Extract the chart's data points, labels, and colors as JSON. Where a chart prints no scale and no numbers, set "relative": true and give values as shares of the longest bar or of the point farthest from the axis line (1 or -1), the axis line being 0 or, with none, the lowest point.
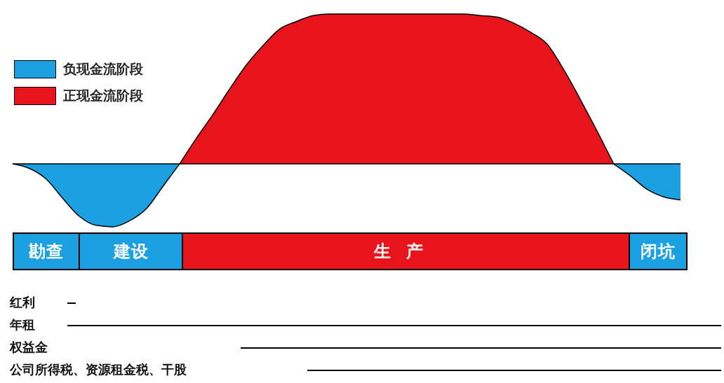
{
  "chart_data": {
    "type": "area",
    "relative": true,
    "legend": "top left",
    "categories": [
      null,
      null,
      null,
      null,
      null,
      null,
      null,
      null,
      null,
      null,
      null,
      null,
      null,
      null,
      null,
      null,
      null,
      null,
      null,
      null,
      null,
      null,
      null,
      null,
      null,
      null,
      null,
      null,
      null,
      null,
      null,
      null,
      null,
      null,
      null,
      null,
      null,
      null,
      null,
      null,
      null
    ],
    "series": [
      {
        "name": "负现金流阶段",
        "color": "#1ba1e2",
        "values": [
          0,
          -0.03,
          -0.1,
          -0.23,
          -0.35,
          -0.41,
          -0.42,
          -0.38,
          -0.3,
          -0.15,
          0,
          null,
          null,
          null,
          null,
          null,
          null,
          null,
          null,
          null,
          null,
          null,
          null,
          null,
          null,
          null,
          null,
          null,
          null,
          null,
          null,
          null,
          null,
          null,
          null,
          null,
          0,
          -0.08,
          -0.17,
          -0.22,
          -0.24
        ]
      },
      {
        "name": "正现金流阶段",
        "color": "#e8141b",
        "values": [
          null,
          null,
          null,
          null,
          null,
          null,
          null,
          null,
          null,
          null,
          0,
          0.17,
          0.33,
          0.5,
          0.66,
          0.79,
          0.9,
          0.95,
          0.99,
          1,
          1,
          1,
          1,
          1,
          1,
          1,
          1,
          1,
          0.99,
          0.98,
          0.94,
          0.88,
          0.8,
          0.63,
          0.43,
          0.22,
          0,
          null,
          null,
          null,
          null
        ]
      }
    ],
    "annotations": [
      "勘查",
      "建设",
      "生产",
      "闭坑",
      "红利",
      "年租",
      "权益金",
      "公司所得税、资源租金税、干股"
    ]
  }
}
